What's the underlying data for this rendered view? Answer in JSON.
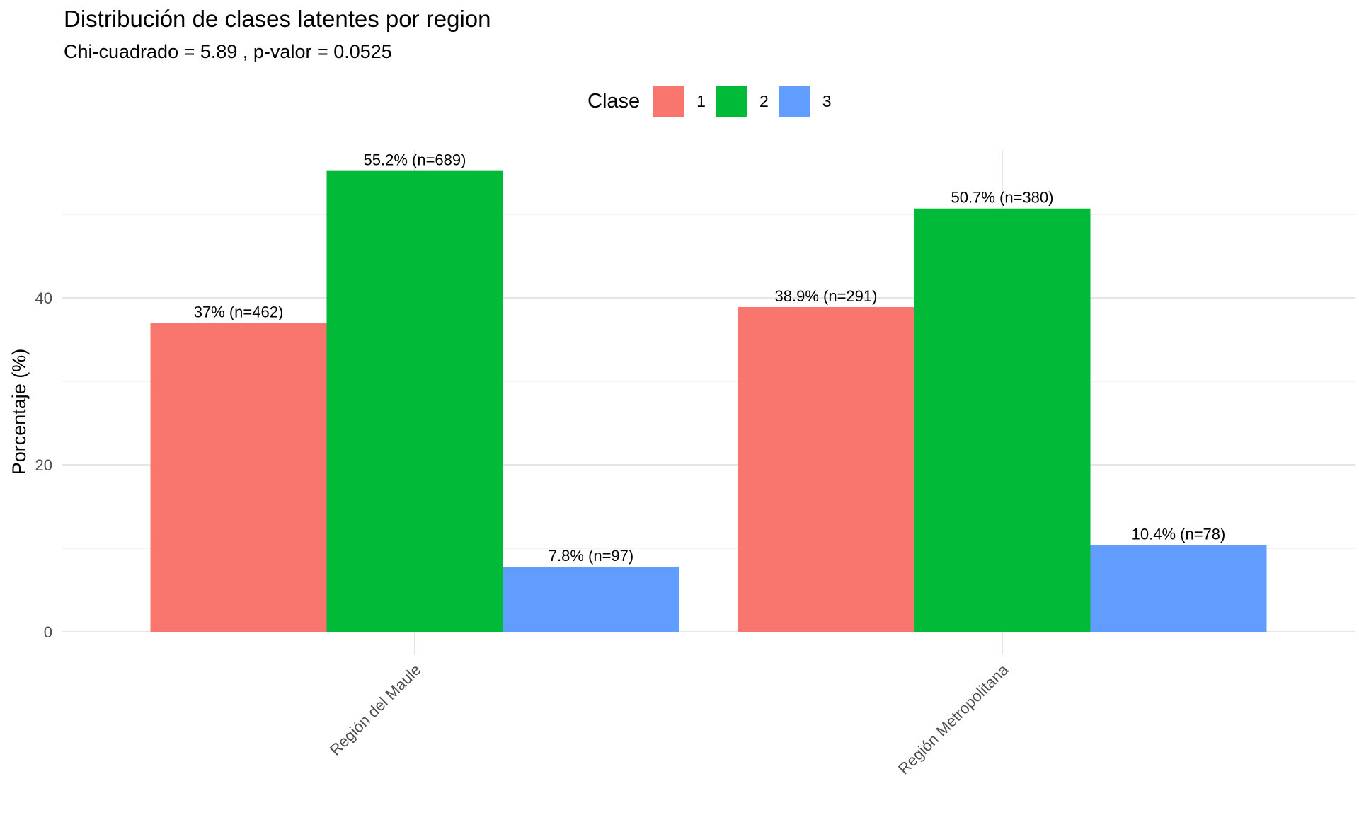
{
  "chart_data": {
    "type": "bar",
    "title": "Distribución de clases latentes por region",
    "subtitle": "Chi-cuadrado = 5.89 , p-valor = 0.0525",
    "xlabel": "",
    "ylabel": "Porcentaje (%)",
    "categories": [
      "Región del Maule",
      "Región Metropolitana"
    ],
    "legend_title": "Clase",
    "legend_position": "top",
    "grid": true,
    "ylim": [
      0,
      58
    ],
    "yticks": [
      0,
      20,
      40
    ],
    "series": [
      {
        "name": "1",
        "color": "#F8766D",
        "values": [
          37.0,
          38.9
        ],
        "labels": [
          "37% (n=462)",
          "38.9% (n=291)"
        ]
      },
      {
        "name": "2",
        "color": "#00BA38",
        "values": [
          55.2,
          50.7
        ],
        "labels": [
          "55.2% (n=689)",
          "50.7% (n=380)"
        ]
      },
      {
        "name": "3",
        "color": "#619CFF",
        "values": [
          7.8,
          10.4
        ],
        "labels": [
          "7.8% (n=97)",
          "10.4% (n=78)"
        ]
      }
    ]
  }
}
